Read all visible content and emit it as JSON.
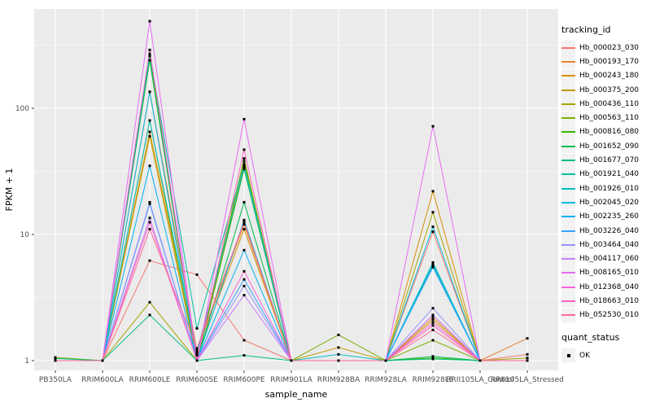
{
  "panel": {
    "bg": "#EBEBEB",
    "grid_color": "#FFFFFF",
    "tick_color": "#333333",
    "tick_label_color": "#4D4D4D",
    "axis_title_color": "#000000"
  },
  "chart_data": {
    "type": "line",
    "title": "",
    "xlabel": "sample_name",
    "ylabel": "FPKM + 1",
    "y_scale": "log10",
    "y_ticks": [
      1,
      10,
      100
    ],
    "y_minor_ticks": [
      3.162,
      31.62,
      316.2
    ],
    "ylim": [
      0.84,
      600
    ],
    "grid": true,
    "point_marker": "black-square",
    "categories": [
      "PB350LA",
      "RRIM600LA",
      "RRIM600LE",
      "RRIM600SE",
      "RRIM600PE",
      "RRIM901LA",
      "RRIM928BA",
      "RRIM928LA",
      "RRIM928LE",
      "RRII105LA_Control",
      "RRII105LA_Stressed"
    ],
    "legend": {
      "title": "tracking_id",
      "position": "right"
    },
    "quant_status": {
      "title": "quant_status",
      "items": [
        {
          "label": "OK",
          "marker": "black-square"
        }
      ]
    },
    "series": [
      {
        "name": "Hb_000023_030",
        "color": "#F8766D",
        "values": [
          1.0,
          1.0,
          6.2,
          4.8,
          1.45,
          1.0,
          1.0,
          1.0,
          10.5,
          1.0,
          1.12
        ]
      },
      {
        "name": "Hb_000193_170",
        "color": "#EA8331",
        "values": [
          1.0,
          1.0,
          135,
          1.2,
          12,
          1.0,
          1.0,
          1.0,
          2.2,
          1.0,
          1.5
        ]
      },
      {
        "name": "Hb_000243_180",
        "color": "#D89000",
        "values": [
          1.0,
          1.0,
          65,
          1.1,
          11,
          1.0,
          1.0,
          1.0,
          22,
          1.0,
          1.0
        ]
      },
      {
        "name": "Hb_000375_200",
        "color": "#C09B00",
        "values": [
          1.0,
          1.0,
          60,
          1.0,
          35,
          1.0,
          1.27,
          1.0,
          2.1,
          1.0,
          1.0
        ]
      },
      {
        "name": "Hb_000436_110",
        "color": "#A3A500",
        "values": [
          1.0,
          1.0,
          2.9,
          1.0,
          38,
          1.0,
          1.0,
          1.0,
          15,
          1.0,
          1.05
        ]
      },
      {
        "name": "Hb_000563_110",
        "color": "#7CAE00",
        "values": [
          1.06,
          1.0,
          80,
          1.0,
          40,
          1.0,
          1.6,
          1.0,
          1.45,
          1.0,
          1.0
        ]
      },
      {
        "name": "Hb_000816_080",
        "color": "#39B600",
        "values": [
          1.0,
          1.0,
          260,
          1.0,
          33,
          1.0,
          1.0,
          1.0,
          1.05,
          1.0,
          1.0
        ]
      },
      {
        "name": "Hb_001652_090",
        "color": "#00BB4E",
        "values": [
          1.0,
          1.0,
          240,
          1.0,
          18,
          1.0,
          1.0,
          1.0,
          1.08,
          1.0,
          1.0
        ]
      },
      {
        "name": "Hb_001677_070",
        "color": "#00BF7D",
        "values": [
          1.04,
          1.0,
          2.3,
          1.0,
          1.1,
          1.0,
          1.0,
          1.0,
          1.03,
          1.0,
          1.0
        ]
      },
      {
        "name": "Hb_001921_040",
        "color": "#00C1A3",
        "values": [
          1.0,
          1.0,
          270,
          1.8,
          36,
          1.0,
          1.0,
          1.0,
          5.8,
          1.0,
          1.0
        ]
      },
      {
        "name": "Hb_001926_010",
        "color": "#00BFC4",
        "values": [
          1.0,
          1.0,
          80,
          1.15,
          34,
          1.0,
          1.12,
          1.0,
          6.0,
          1.0,
          1.0
        ]
      },
      {
        "name": "Hb_002045_020",
        "color": "#00BAE0",
        "values": [
          1.0,
          1.0,
          135,
          1.0,
          13,
          1.0,
          1.0,
          1.0,
          11.5,
          1.0,
          1.0
        ]
      },
      {
        "name": "Hb_002235_260",
        "color": "#00B0F6",
        "values": [
          1.0,
          1.0,
          35,
          1.0,
          7.5,
          1.0,
          1.0,
          1.0,
          5.5,
          1.0,
          1.0
        ]
      },
      {
        "name": "Hb_003226_040",
        "color": "#35A2FF",
        "values": [
          1.0,
          1.0,
          17.5,
          1.0,
          4.4,
          1.0,
          1.0,
          1.0,
          5.6,
          1.0,
          1.0
        ]
      },
      {
        "name": "Hb_003464_040",
        "color": "#9590FF",
        "values": [
          1.0,
          1.0,
          18,
          1.0,
          3.9,
          1.0,
          1.0,
          1.0,
          2.6,
          1.0,
          1.0
        ]
      },
      {
        "name": "Hb_004117_060",
        "color": "#C77CFF",
        "values": [
          1.0,
          1.0,
          13.5,
          1.0,
          3.3,
          1.0,
          1.0,
          1.0,
          2.3,
          1.0,
          1.0
        ]
      },
      {
        "name": "Hb_008165_010",
        "color": "#E76BF3",
        "values": [
          1.0,
          1.0,
          490,
          1.0,
          82,
          1.0,
          1.0,
          1.0,
          72,
          1.0,
          1.0
        ]
      },
      {
        "name": "Hb_012368_040",
        "color": "#FA62DB",
        "values": [
          1.0,
          1.0,
          290,
          1.0,
          5.1,
          1.0,
          1.0,
          1.0,
          2.0,
          1.0,
          1.0
        ]
      },
      {
        "name": "Hb_018663_010",
        "color": "#FF62BC",
        "values": [
          1.0,
          1.0,
          12.5,
          1.0,
          47,
          1.0,
          1.0,
          1.0,
          1.9,
          1.0,
          1.0
        ]
      },
      {
        "name": "Hb_052530_010",
        "color": "#FF6A98",
        "values": [
          1.0,
          1.0,
          11,
          1.25,
          12.5,
          1.0,
          1.0,
          1.0,
          1.75,
          1.0,
          1.0
        ]
      }
    ]
  }
}
